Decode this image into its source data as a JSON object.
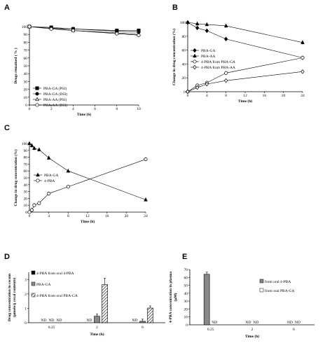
{
  "chart_data": [
    {
      "panel": "A",
      "type": "line",
      "xlabel": "Time (h)",
      "ylabel": "Drugs remained ( % )",
      "xlim": [
        0,
        10
      ],
      "ylim": [
        0,
        100
      ],
      "x_ticks": [
        0,
        2,
        4,
        6,
        8,
        10
      ],
      "y_ticks": [
        0,
        10,
        20,
        30,
        40,
        50,
        60,
        70,
        80,
        90,
        100
      ],
      "legend_position": "bottom-left",
      "x": [
        0,
        2,
        4,
        8,
        10
      ],
      "series": [
        {
          "name": "PBA-GA (PSI)",
          "marker": "filled-square",
          "values": [
            100,
            99,
            97,
            95,
            95
          ]
        },
        {
          "name": "PBA-GA (DSI)",
          "marker": "filled-circle",
          "values": [
            100,
            98,
            97,
            94,
            93
          ]
        },
        {
          "name": "PBA-AA (PSI)",
          "marker": "open-triangle",
          "values": [
            100,
            98,
            95,
            92,
            90
          ]
        },
        {
          "name": "PBA-AA (DSI)",
          "marker": "open-circle",
          "values": [
            100,
            97,
            95,
            91,
            89
          ]
        }
      ]
    },
    {
      "panel": "B",
      "type": "line",
      "xlabel": "Time (h)",
      "ylabel": "Change in drug concentration (%)",
      "xlim": [
        0,
        24
      ],
      "ylim": [
        0,
        100
      ],
      "x_ticks": [
        0,
        4,
        8,
        12,
        16,
        20,
        24
      ],
      "y_ticks": [
        0,
        20,
        40,
        60,
        80,
        100
      ],
      "legend_position": "middle-left",
      "x": [
        0,
        2,
        4,
        8,
        24
      ],
      "series": [
        {
          "name": "PBA-GA",
          "marker": "filled-diamond",
          "values": [
            100,
            92,
            88,
            76,
            49
          ]
        },
        {
          "name": "PBA-AA",
          "marker": "filled-triangle",
          "values": [
            100,
            98,
            97,
            95,
            71
          ]
        },
        {
          "name": "4-PBA from PBA-GA",
          "marker": "open-circle",
          "values": [
            0,
            9,
            13,
            27,
            49
          ]
        },
        {
          "name": "4-PBA from PBA-AA",
          "marker": "open-diamond",
          "values": [
            0,
            6,
            11,
            16,
            29
          ]
        }
      ]
    },
    {
      "panel": "C",
      "type": "line",
      "xlabel": "Time (h)",
      "ylabel": "Change in drug concentration (%)",
      "xlim": [
        0,
        24
      ],
      "ylim": [
        0,
        100
      ],
      "x_ticks": [
        0,
        4,
        8,
        12,
        16,
        20,
        24
      ],
      "y_ticks": [
        0,
        10,
        20,
        30,
        40,
        50,
        60,
        70,
        80,
        90,
        100
      ],
      "legend_position": "middle-left",
      "series": [
        {
          "name": "PBA-GA",
          "marker": "filled-triangle",
          "x": [
            0,
            0.5,
            1,
            2,
            4,
            8,
            24
          ],
          "values": [
            100,
            97,
            93,
            91,
            79,
            60,
            18
          ]
        },
        {
          "name": "4-PBA",
          "marker": "open-circle",
          "x": [
            0,
            0.5,
            1,
            2,
            4,
            8,
            24
          ],
          "values": [
            0,
            3,
            10,
            13,
            27,
            37,
            77
          ]
        }
      ]
    },
    {
      "panel": "D",
      "type": "bar",
      "xlabel": "Time (h)",
      "ylabel": "Drug concentration in cecum (µmole/g cecal contents)",
      "ylim": [
        0,
        3.5
      ],
      "y_ticks": [
        0,
        1,
        2,
        3
      ],
      "categories": [
        "0.25",
        "2",
        "6"
      ],
      "legend_position": "top-left",
      "not_detected_label": "ND",
      "series": [
        {
          "name": "4-PBA from oral 4-PBA",
          "fill": "black",
          "values": [
            null,
            null,
            null
          ]
        },
        {
          "name": "PBA-GA",
          "fill": "gray",
          "values": [
            null,
            0.45,
            0.1
          ]
        },
        {
          "name": "4-PBA from oral PBA-GA",
          "fill": "hatched",
          "values": [
            null,
            2.65,
            1.02
          ]
        }
      ]
    },
    {
      "panel": "E",
      "type": "bar",
      "xlabel": "Time (h)",
      "ylabel": "4-PBA concentration in plasma (µM)",
      "ylim": [
        0,
        70
      ],
      "y_ticks": [
        0,
        10,
        20,
        30,
        40,
        50,
        60,
        70
      ],
      "categories": [
        "0.25",
        "2",
        "6"
      ],
      "legend_position": "top-right",
      "not_detected_label": "ND",
      "series": [
        {
          "name": "from oral 4-PBA",
          "fill": "gray",
          "values": [
            64,
            null,
            null
          ]
        },
        {
          "name": "from oral PBA-GA",
          "fill": "white",
          "values": [
            null,
            null,
            null
          ]
        }
      ]
    }
  ]
}
